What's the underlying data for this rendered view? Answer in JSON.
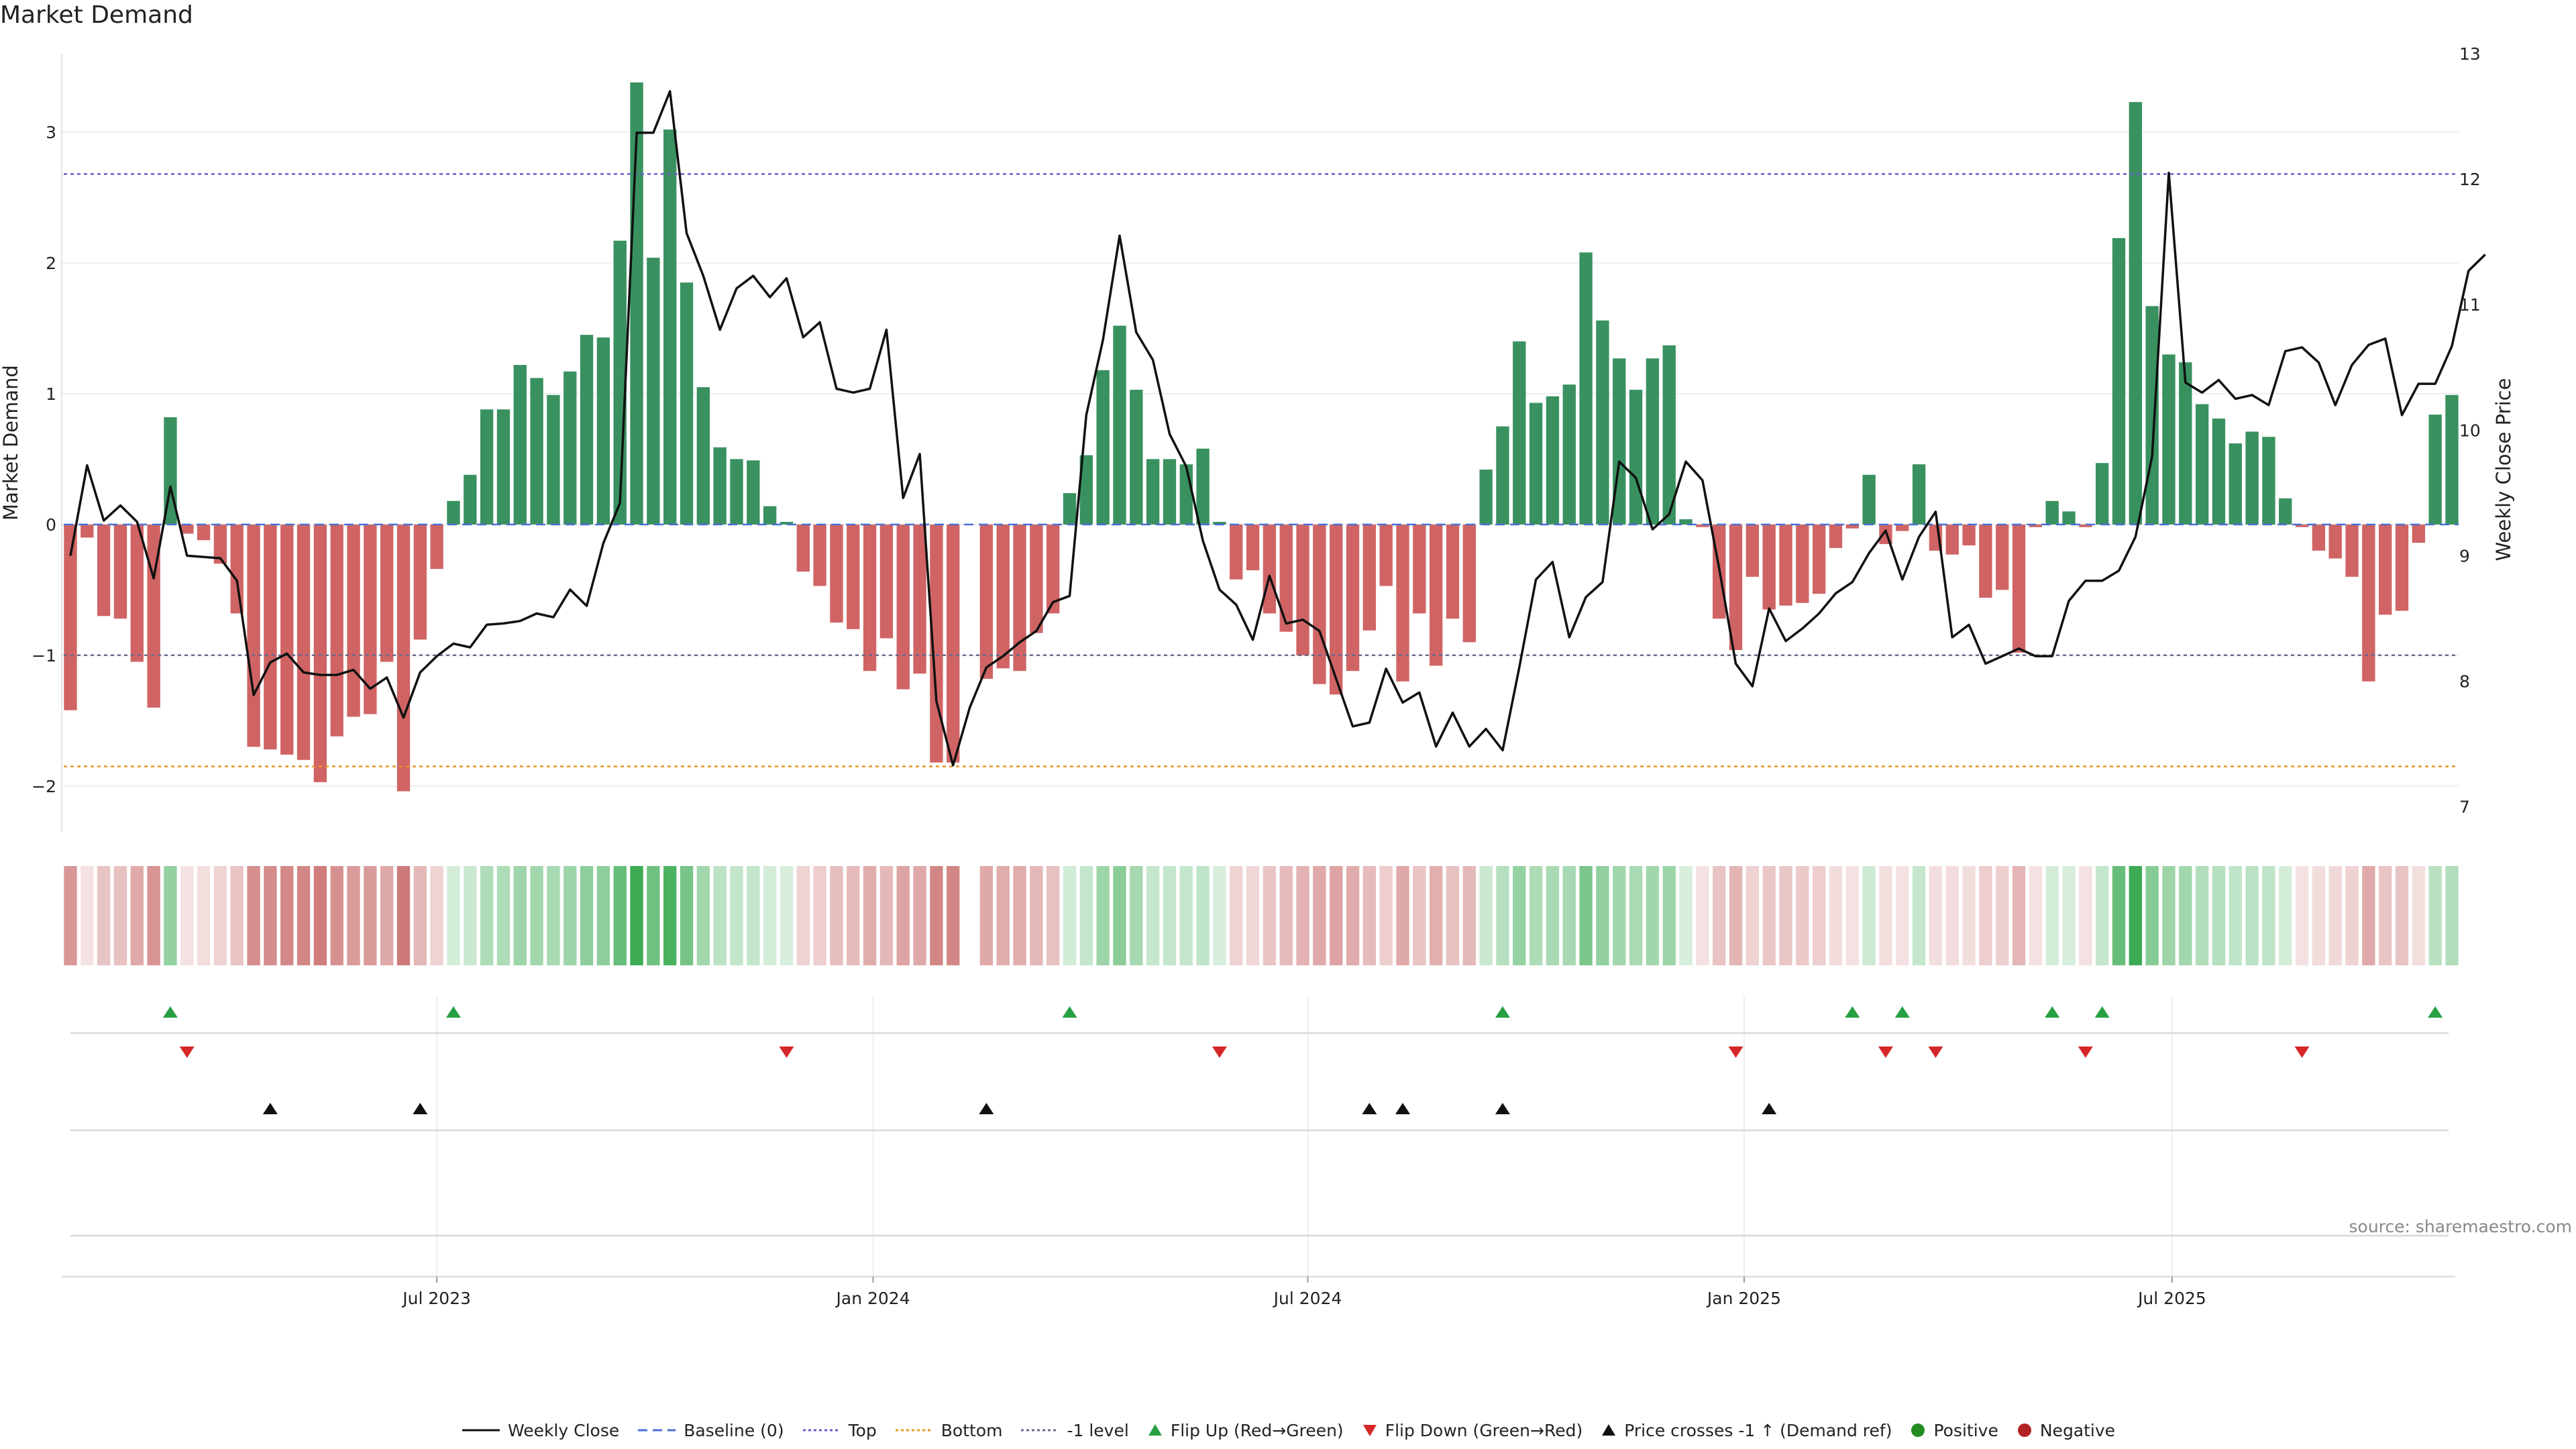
{
  "title": "Market Demand",
  "source": "source: sharemaestro.com",
  "colors": {
    "pos_bar": "#2e8b57",
    "neg_bar": "#cd5c5c",
    "price_line": "#111111",
    "baseline": "#4a6fd4",
    "top_line": "#6a5acd",
    "bottom_line": "#e69522",
    "minus1_line": "#6a6a8a",
    "flip_up": "#27a043",
    "flip_down": "#d62728",
    "cross": "#111111",
    "positive": "#228b22",
    "negative": "#b22222"
  },
  "legend": [
    {
      "key": "weekly-close",
      "label": "Weekly Close",
      "kind": "line",
      "color": "#111111",
      "dash": ""
    },
    {
      "key": "baseline",
      "label": "Baseline (0)",
      "kind": "line",
      "color": "#4a6fd4",
      "dash": "14,8"
    },
    {
      "key": "top",
      "label": "Top",
      "kind": "line",
      "color": "#6a5acd",
      "dash": "4,4"
    },
    {
      "key": "bottom",
      "label": "Bottom",
      "kind": "line",
      "color": "#e69522",
      "dash": "4,4"
    },
    {
      "key": "minus1",
      "label": "-1 level",
      "kind": "line",
      "color": "#6a6a8a",
      "dash": "4,4"
    },
    {
      "key": "flip-up",
      "label": "Flip Up (Red→Green)",
      "kind": "tri-up",
      "color": "#27a043"
    },
    {
      "key": "flip-down",
      "label": "Flip Down (Green→Red)",
      "kind": "tri-down",
      "color": "#d62728"
    },
    {
      "key": "price-cross",
      "label": "Price crosses -1 ↑ (Demand ref)",
      "kind": "tri-up",
      "color": "#111111"
    },
    {
      "key": "positive",
      "label": "Positive",
      "kind": "dot",
      "color": "#228b22"
    },
    {
      "key": "negative",
      "label": "Negative",
      "kind": "dot",
      "color": "#b22222"
    }
  ],
  "chart_data": {
    "type": "bar",
    "title": "Market Demand",
    "ylabel": "Market Demand",
    "y2label": "Weekly Close Price",
    "ylim": [
      -2.35,
      3.6
    ],
    "y2lim": [
      6.8,
      13.0
    ],
    "yticks": [
      -2,
      -1,
      0,
      1,
      2,
      3
    ],
    "yticklabels": [
      "−2",
      "−1",
      "0",
      "1",
      "2",
      "3"
    ],
    "y2ticks": [
      7,
      8,
      9,
      10,
      11,
      12,
      13
    ],
    "y2ticklabels": [
      "7",
      "8",
      "9",
      "10",
      "11",
      "12",
      "13"
    ],
    "xticks": [
      {
        "index": 22,
        "label": "Jul 2023"
      },
      {
        "index": 48.2,
        "label": "Jan 2024"
      },
      {
        "index": 74.3,
        "label": "Jul 2024"
      },
      {
        "index": 100.5,
        "label": "Jan 2025"
      },
      {
        "index": 126.2,
        "label": "Jul 2025"
      }
    ],
    "reference_lines": {
      "baseline": 0,
      "top": 2.68,
      "bottom": -1.85,
      "minus1": -1
    },
    "demand": [
      -1.42,
      -0.1,
      -0.7,
      -0.72,
      -1.05,
      -1.4,
      0.82,
      -0.07,
      -0.12,
      -0.3,
      -0.68,
      -1.7,
      -1.72,
      -1.76,
      -1.8,
      -1.97,
      -1.62,
      -1.47,
      -1.45,
      -1.05,
      -2.04,
      -0.88,
      -0.34,
      0.18,
      0.38,
      0.88,
      0.88,
      1.22,
      1.12,
      0.99,
      1.17,
      1.45,
      1.43,
      2.17,
      3.38,
      2.04,
      3.02,
      1.85,
      1.05,
      0.59,
      0.5,
      0.49,
      0.14,
      0.02,
      -0.36,
      -0.47,
      -0.75,
      -0.8,
      -1.12,
      -0.87,
      -1.26,
      -1.14,
      -1.82,
      -1.82,
      0.0,
      -1.18,
      -1.1,
      -1.12,
      -0.83,
      -0.68,
      0.24,
      0.53,
      1.18,
      1.52,
      1.03,
      0.5,
      0.5,
      0.46,
      0.58,
      0.02,
      -0.42,
      -0.35,
      -0.68,
      -0.82,
      -1.0,
      -1.22,
      -1.3,
      -1.12,
      -0.81,
      -0.47,
      -1.2,
      -0.68,
      -1.08,
      -0.72,
      -0.9,
      0.42,
      0.75,
      1.4,
      0.93,
      0.98,
      1.07,
      2.08,
      1.56,
      1.27,
      1.03,
      1.27,
      1.37,
      0.04,
      -0.02,
      -0.72,
      -0.96,
      -0.4,
      -0.65,
      -0.62,
      -0.6,
      -0.53,
      -0.18,
      -0.03,
      0.38,
      -0.15,
      -0.05,
      0.46,
      -0.2,
      -0.23,
      -0.16,
      -0.56,
      -0.5,
      -0.98,
      -0.02,
      0.18,
      0.1,
      -0.02,
      0.47,
      2.19,
      3.23,
      1.67,
      1.3,
      1.24,
      0.92,
      0.81,
      0.62,
      0.71,
      0.67,
      0.2,
      -0.02,
      -0.2,
      -0.26,
      -0.4,
      -1.2,
      -0.69,
      -0.66,
      -0.14,
      0.84,
      0.99
    ],
    "price": [
      9.0,
      9.72,
      9.28,
      9.4,
      9.27,
      8.82,
      9.55,
      9.0,
      8.99,
      8.98,
      8.8,
      7.89,
      8.15,
      8.22,
      8.07,
      8.05,
      8.05,
      8.09,
      7.94,
      8.03,
      7.71,
      8.07,
      8.2,
      8.3,
      8.27,
      8.45,
      8.46,
      8.48,
      8.54,
      8.51,
      8.73,
      8.6,
      9.1,
      9.42,
      12.37,
      12.37,
      12.7,
      11.57,
      11.23,
      10.8,
      11.13,
      11.23,
      11.06,
      11.21,
      10.74,
      10.86,
      10.33,
      10.3,
      10.33,
      10.8,
      9.46,
      9.81,
      7.84,
      7.33,
      7.79,
      8.11,
      8.2,
      8.31,
      8.4,
      8.63,
      8.68,
      10.12,
      10.72,
      11.55,
      10.78,
      10.56,
      9.97,
      9.71,
      9.12,
      8.73,
      8.61,
      8.33,
      8.84,
      8.46,
      8.49,
      8.4,
      8.02,
      7.64,
      7.67,
      8.1,
      7.83,
      7.91,
      7.48,
      7.75,
      7.48,
      7.62,
      7.45,
      8.11,
      8.81,
      8.95,
      8.35,
      8.67,
      8.79,
      9.75,
      9.62,
      9.21,
      9.33,
      9.75,
      9.6,
      8.9,
      8.14,
      7.96,
      8.58,
      8.32,
      8.42,
      8.54,
      8.7,
      8.79,
      9.02,
      9.2,
      8.81,
      9.15,
      9.35,
      8.35,
      8.45,
      8.14,
      8.2,
      8.26,
      8.2,
      8.2,
      8.64,
      8.8,
      8.8,
      8.88,
      9.15,
      9.79,
      12.05,
      10.38,
      10.3,
      10.4,
      10.25,
      10.28,
      10.2,
      10.63,
      10.66,
      10.54,
      10.2,
      10.52,
      10.68,
      10.73,
      10.12,
      10.37,
      10.37,
      10.67,
      11.27,
      11.4
    ],
    "ribbon_opacity": [
      0.7,
      0.2,
      0.4,
      0.42,
      0.58,
      0.72,
      0.55,
      0.2,
      0.22,
      0.3,
      0.4,
      0.76,
      0.78,
      0.8,
      0.82,
      0.88,
      0.75,
      0.68,
      0.68,
      0.58,
      0.9,
      0.48,
      0.3,
      0.22,
      0.28,
      0.42,
      0.42,
      0.5,
      0.48,
      0.45,
      0.5,
      0.58,
      0.58,
      0.78,
      1.0,
      0.74,
      0.92,
      0.7,
      0.48,
      0.34,
      0.3,
      0.3,
      0.22,
      0.2,
      0.3,
      0.34,
      0.44,
      0.46,
      0.56,
      0.48,
      0.62,
      0.58,
      0.82,
      0.82,
      0.0,
      0.58,
      0.56,
      0.56,
      0.48,
      0.42,
      0.24,
      0.3,
      0.5,
      0.6,
      0.46,
      0.3,
      0.3,
      0.3,
      0.32,
      0.2,
      0.3,
      0.28,
      0.4,
      0.46,
      0.52,
      0.58,
      0.62,
      0.56,
      0.46,
      0.34,
      0.58,
      0.4,
      0.54,
      0.42,
      0.48,
      0.28,
      0.38,
      0.54,
      0.42,
      0.44,
      0.46,
      0.68,
      0.56,
      0.48,
      0.44,
      0.48,
      0.5,
      0.2,
      0.2,
      0.4,
      0.5,
      0.3,
      0.38,
      0.38,
      0.36,
      0.34,
      0.24,
      0.2,
      0.26,
      0.22,
      0.2,
      0.3,
      0.22,
      0.24,
      0.22,
      0.34,
      0.32,
      0.5,
      0.2,
      0.22,
      0.2,
      0.2,
      0.3,
      0.78,
      1.0,
      0.62,
      0.5,
      0.48,
      0.4,
      0.38,
      0.32,
      0.34,
      0.33,
      0.22,
      0.2,
      0.24,
      0.26,
      0.3,
      0.58,
      0.4,
      0.4,
      0.22,
      0.36,
      0.4
    ],
    "flip_up": [
      6,
      23,
      60,
      86,
      107,
      110,
      119,
      122,
      142
    ],
    "flip_down": [
      7,
      43,
      69,
      100,
      109,
      112,
      121,
      134
    ],
    "price_crosses": [
      12,
      21,
      55,
      78,
      80,
      86,
      102
    ]
  }
}
